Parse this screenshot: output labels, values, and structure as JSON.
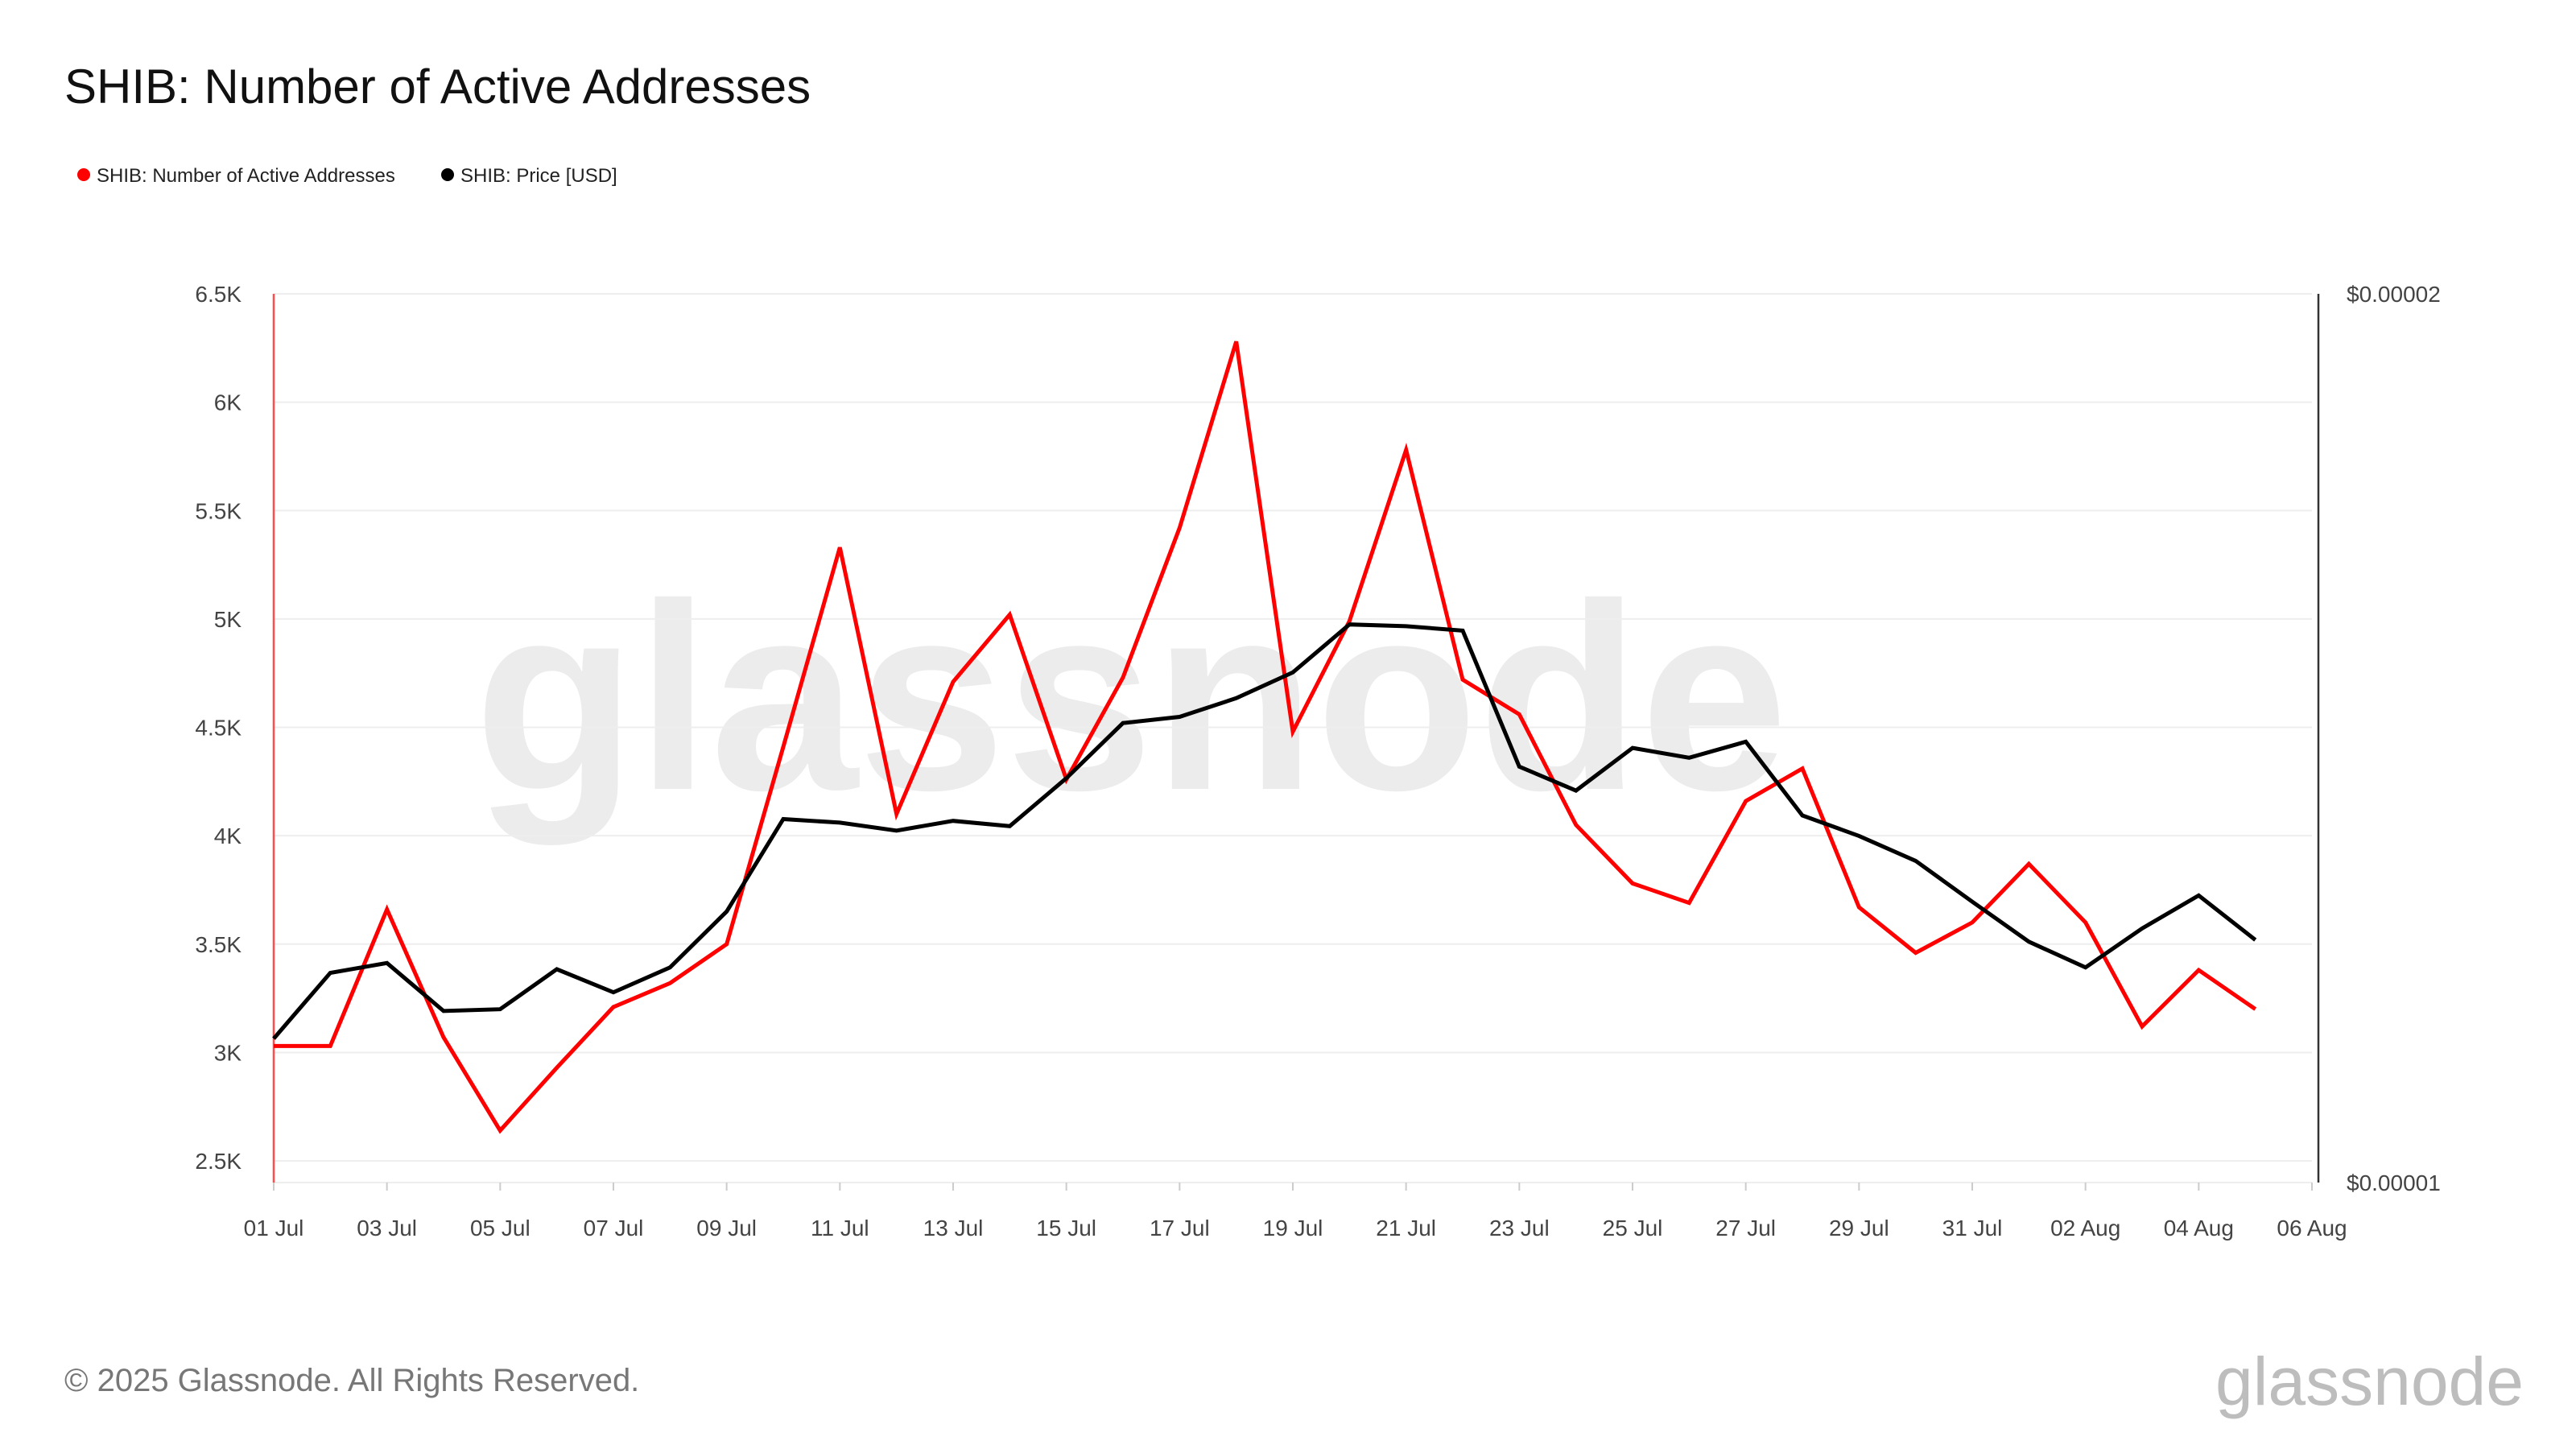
{
  "title": "SHIB: Number of Active Addresses",
  "footer": "© 2025 Glassnode. All Rights Reserved.",
  "watermark": "glassnode",
  "logo": "glassnode",
  "legend": [
    {
      "label": "SHIB: Number of Active Addresses",
      "color": "#ff0000"
    },
    {
      "label": "SHIB: Price [USD]",
      "color": "#000000"
    }
  ],
  "chart_data": {
    "type": "line",
    "title": "SHIB: Number of Active Addresses",
    "x": [
      "2025-07-01",
      "2025-07-02",
      "2025-07-03",
      "2025-07-04",
      "2025-07-05",
      "2025-07-06",
      "2025-07-07",
      "2025-07-08",
      "2025-07-09",
      "2025-07-10",
      "2025-07-11",
      "2025-07-12",
      "2025-07-13",
      "2025-07-14",
      "2025-07-15",
      "2025-07-16",
      "2025-07-17",
      "2025-07-18",
      "2025-07-19",
      "2025-07-20",
      "2025-07-21",
      "2025-07-22",
      "2025-07-23",
      "2025-07-24",
      "2025-07-25",
      "2025-07-26",
      "2025-07-27",
      "2025-07-28",
      "2025-07-29",
      "2025-07-30",
      "2025-07-31",
      "2025-08-01",
      "2025-08-02",
      "2025-08-03",
      "2025-08-04",
      "2025-08-05"
    ],
    "x_tick_labels": [
      "01 Jul",
      "03 Jul",
      "05 Jul",
      "07 Jul",
      "09 Jul",
      "11 Jul",
      "13 Jul",
      "15 Jul",
      "17 Jul",
      "19 Jul",
      "21 Jul",
      "23 Jul",
      "25 Jul",
      "27 Jul",
      "29 Jul",
      "31 Jul",
      "02 Aug",
      "04 Aug",
      "06 Aug"
    ],
    "x_range": [
      "2025-07-01",
      "2025-08-06"
    ],
    "y_left": {
      "tick_labels": [
        "2.5K",
        "3K",
        "3.5K",
        "4K",
        "4.5K",
        "5K",
        "5.5K",
        "6K",
        "6.5K"
      ],
      "ticks": [
        2500,
        3000,
        3500,
        4000,
        4500,
        5000,
        5500,
        6000,
        6500
      ],
      "ylim": [
        2400,
        6500
      ]
    },
    "y_right": {
      "tick_labels": [
        "$0.00001",
        "$0.00002"
      ],
      "ticks": [
        1e-05,
        2e-05
      ],
      "ylim": [
        1e-05,
        2e-05
      ]
    },
    "grid": true,
    "legend_position": "top-left",
    "series": [
      {
        "name": "SHIB: Number of Active Addresses",
        "axis": "left",
        "color": "#ff0000",
        "values": [
          3030,
          3030,
          3660,
          3070,
          2640,
          2930,
          3210,
          3320,
          3500,
          4410,
          5330,
          4100,
          4710,
          5020,
          4260,
          4730,
          5420,
          6280,
          4480,
          4990,
          5780,
          4720,
          4560,
          4050,
          3780,
          3690,
          4160,
          4310,
          3670,
          3460,
          3600,
          3870,
          3600,
          3120,
          3380,
          3200
        ]
      },
      {
        "name": "SHIB: Price [USD]",
        "axis": "right",
        "color": "#000000",
        "values": [
          1.162e-05,
          1.236e-05,
          1.247e-05,
          1.193e-05,
          1.195e-05,
          1.24e-05,
          1.214e-05,
          1.242e-05,
          1.305e-05,
          1.409e-05,
          1.405e-05,
          1.396e-05,
          1.407e-05,
          1.401e-05,
          1.455e-05,
          1.517e-05,
          1.524e-05,
          1.545e-05,
          1.574e-05,
          1.628e-05,
          1.626e-05,
          1.621e-05,
          1.468e-05,
          1.441e-05,
          1.489e-05,
          1.478e-05,
          1.496e-05,
          1.413e-05,
          1.39e-05,
          1.362e-05,
          1.316e-05,
          1.271e-05,
          1.242e-05,
          1.286e-05,
          1.323e-05,
          1.273e-05
        ]
      }
    ]
  }
}
